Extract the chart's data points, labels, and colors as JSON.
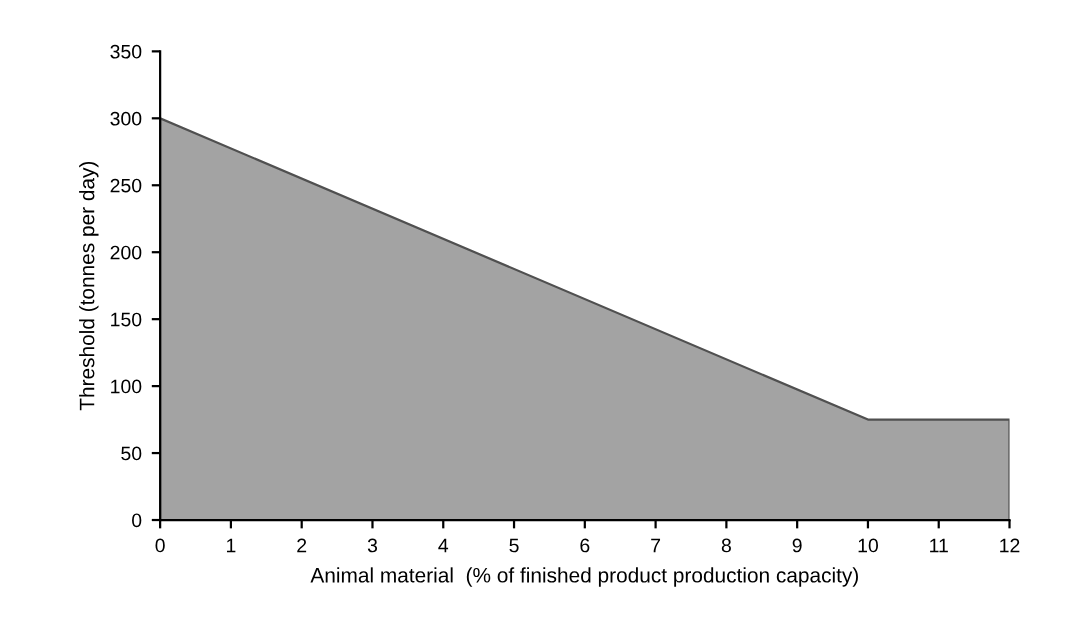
{
  "chart_data": {
    "type": "area",
    "xlabel": "Animal material  (% of finished product production capacity)",
    "ylabel": "Threshold (tonnes per day)",
    "x": [
      0,
      10,
      12
    ],
    "series": [
      {
        "color": "#a3a3a3",
        "values": [
          300,
          75,
          75
        ]
      }
    ],
    "xlim": [
      0,
      12
    ],
    "xticks": [
      0,
      1,
      2,
      3,
      4,
      5,
      6,
      7,
      8,
      9,
      10,
      11,
      12
    ],
    "ylim": [
      0,
      350
    ],
    "yticks": [
      0,
      50,
      100,
      150,
      200,
      250,
      300,
      350
    ],
    "grid": false
  }
}
